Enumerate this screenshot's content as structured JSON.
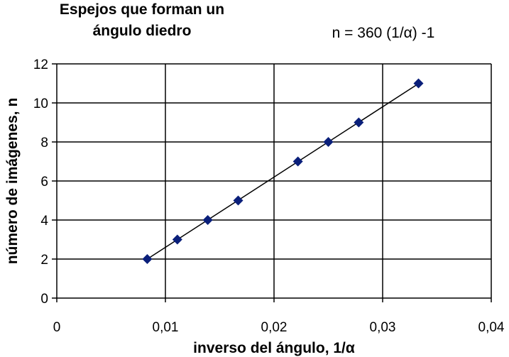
{
  "chart_data": {
    "type": "scatter",
    "title_line1": "Espejos que forman un",
    "title_line2": "ángulo diedro",
    "annotation": "n = 360 (1/α) -1",
    "xlabel": "inverso del ángulo, 1/α",
    "ylabel": "número de imágenes, n",
    "xlim": [
      0,
      0.04
    ],
    "ylim": [
      0,
      12
    ],
    "xticks": [
      0,
      0.01,
      0.02,
      0.03,
      0.04
    ],
    "xtick_labels": [
      "0",
      "0,01",
      "0,02",
      "0,03",
      "0,04"
    ],
    "yticks": [
      0,
      2,
      4,
      6,
      8,
      10,
      12
    ],
    "ytick_labels": [
      "0",
      "2",
      "4",
      "6",
      "8",
      "10",
      "12"
    ],
    "grid": true,
    "marker": "diamond",
    "marker_color": "#0a1f7a",
    "points": [
      {
        "x": 0.00833,
        "y": 2
      },
      {
        "x": 0.0111,
        "y": 3
      },
      {
        "x": 0.0139,
        "y": 4
      },
      {
        "x": 0.0167,
        "y": 5
      },
      {
        "x": 0.0222,
        "y": 7
      },
      {
        "x": 0.025,
        "y": 8
      },
      {
        "x": 0.0278,
        "y": 9
      },
      {
        "x": 0.0333,
        "y": 11
      }
    ],
    "trendline": {
      "slope": 360,
      "intercept": -1,
      "x_range": [
        0.00833,
        0.0333
      ]
    }
  }
}
